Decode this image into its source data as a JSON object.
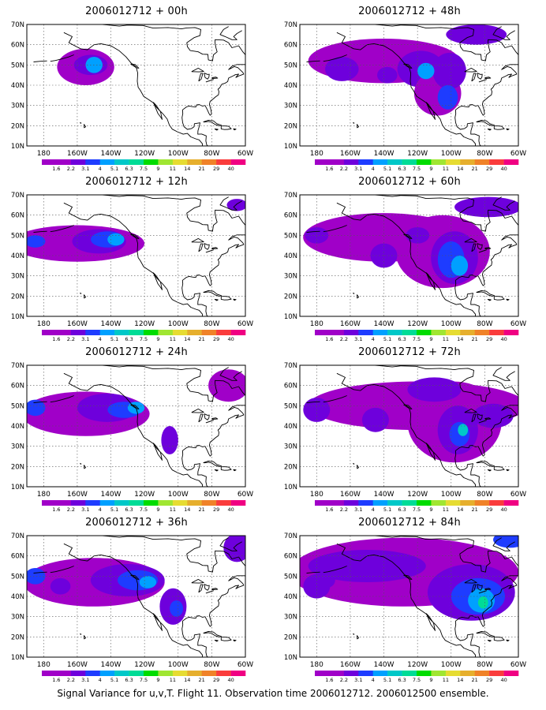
{
  "panels": [
    {
      "title": "2006012712 + 00h",
      "lead": "00h"
    },
    {
      "title": "2006012712 + 48h",
      "lead": "48h"
    },
    {
      "title": "2006012712 + 12h",
      "lead": "12h"
    },
    {
      "title": "2006012712 + 60h",
      "lead": "60h"
    },
    {
      "title": "2006012712 + 24h",
      "lead": "24h"
    },
    {
      "title": "2006012712 + 72h",
      "lead": "72h"
    },
    {
      "title": "2006012712 + 36h",
      "lead": "36h"
    },
    {
      "title": "2006012712 + 84h",
      "lead": "84h"
    }
  ],
  "axes": {
    "lat_labels": [
      "10N",
      "20N",
      "30N",
      "40N",
      "50N",
      "60N",
      "70N"
    ],
    "lon_labels": [
      "180",
      "160W",
      "140W",
      "120W",
      "100W",
      "80W",
      "60W"
    ],
    "lat_range": [
      10,
      70
    ],
    "lon_range": [
      -190,
      -60
    ]
  },
  "colorbar": {
    "labels": [
      "1.6",
      "2.2",
      "3.1",
      "4",
      "5.1",
      "6.3",
      "7.5",
      "9",
      "11",
      "14",
      "21",
      "29",
      "40"
    ],
    "colors": [
      "#a000c8",
      "#6e00dc",
      "#1e3cff",
      "#00a0ff",
      "#00c8c8",
      "#00dc96",
      "#00dc00",
      "#a0e632",
      "#e6dc32",
      "#e6af2d",
      "#f08228",
      "#fa3c3c",
      "#f00082"
    ]
  },
  "caption": "Signal Variance for u,v,T. Flight 11. Observation time 2006012712. 2006012500 ensemble."
}
